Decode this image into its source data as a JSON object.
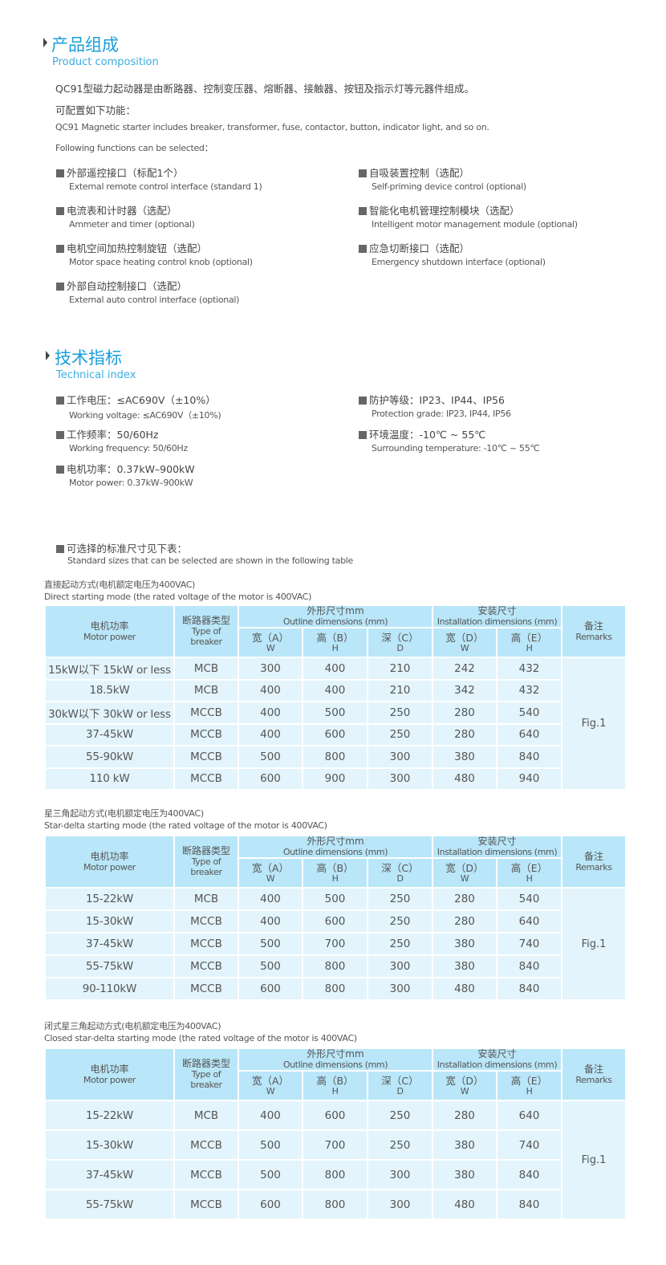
{
  "composition": {
    "title_zh": "产品组成",
    "title_en": "Product composition",
    "intro_zh": "QC91型磁力起动器是由断路器、控制变压器、熔断器、接触器、按钮及指示灯等元器件组成。",
    "config_zh": "可配置如下功能：",
    "intro_en": "QC91 Magnetic starter includes breaker, transformer, fuse, contactor, button, indicator light, and so on.",
    "config_en": "Following functions can be selected：",
    "left_items": [
      {
        "zh": "外部遥控接口（标配1个）",
        "en": "External remote control interface (standard 1)"
      },
      {
        "zh": "电流表和计时器（选配）",
        "en": "Ammeter and timer (optional)"
      },
      {
        "zh": "电机空间加热控制旋钮（选配）",
        "en": "Motor space heating control knob (optional)"
      },
      {
        "zh": "外部自动控制接口（选配）",
        "en": "External auto control interface (optional)"
      }
    ],
    "right_items": [
      {
        "zh": "自吸装置控制（选配）",
        "en": "Self-priming device control (optional)"
      },
      {
        "zh": "智能化电机管理控制模块（选配）",
        "en": "Intelligent motor management module (optional)"
      },
      {
        "zh": "应急切断接口（选配）",
        "en": "Emergency shutdown interface (optional)"
      }
    ]
  },
  "technical": {
    "title_zh": "技术指标",
    "title_en": "Technical index",
    "left_items": [
      {
        "zh": "工作电压：≤AC690V（±10%）",
        "en": "Working voltage: ≤AC690V（±10%)"
      },
      {
        "zh": "工作频率：50/60Hz",
        "en": "Working frequency: 50/60Hz"
      },
      {
        "zh": "电机功率：0.37kW–900kW",
        "en": "Motor power: 0.37kW–900kW"
      }
    ],
    "right_items": [
      {
        "zh": "防护等级：IP23、IP44、IP56",
        "en": "Protection grade: IP23, IP44, IP56"
      },
      {
        "zh": "环境温度：-10℃ ~ 55℃",
        "en": "Surrounding temperature: -10℃ ~ 55℃"
      }
    ],
    "sizes_zh": "可选择的标准尺寸见下表：",
    "sizes_en": "Standard sizes that can be selected are shown in the following table"
  },
  "table_header": {
    "motor_zh": "电机功率",
    "motor_en": "Motor power",
    "breaker_zh": "断路器类型",
    "breaker_en": "Type of breaker",
    "outline_zh": "外形尺寸mm",
    "outline_en": "Outline dimensions (mm)",
    "install_zh": "安装尺寸",
    "install_en": "Installation dimensions (mm)",
    "remarks_zh": "备注",
    "remarks_en": "Remarks",
    "sub": [
      {
        "zh": "宽（A）",
        "en": "W"
      },
      {
        "zh": "高（B）",
        "en": "H"
      },
      {
        "zh": "深（C）",
        "en": "D"
      },
      {
        "zh": "宽（D）",
        "en": "W"
      },
      {
        "zh": "高（E）",
        "en": "H"
      }
    ]
  },
  "tables": [
    {
      "caption_zh": "直接起动方式(电机额定电压为400VAC)",
      "caption_en": "Direct starting mode (the rated voltage of the motor is 400VAC)",
      "remark": "Fig.1",
      "rows": [
        [
          "15kW以下 15kW or less",
          "MCB",
          "300",
          "400",
          "210",
          "242",
          "432"
        ],
        [
          "18.5kW",
          "MCB",
          "400",
          "400",
          "210",
          "342",
          "432"
        ],
        [
          "30kW以下 30kW or less",
          "MCCB",
          "400",
          "500",
          "250",
          "280",
          "540"
        ],
        [
          "37-45kW",
          "MCCB",
          "400",
          "600",
          "250",
          "280",
          "640"
        ],
        [
          "55-90kW",
          "MCCB",
          "500",
          "800",
          "300",
          "380",
          "840"
        ],
        [
          "110 kW",
          "MCCB",
          "600",
          "900",
          "300",
          "480",
          "940"
        ]
      ]
    },
    {
      "caption_zh": "星三角起动方式(电机额定电压为400VAC)",
      "caption_en": "Star-delta starting mode (the rated voltage of the motor is 400VAC)",
      "remark": "Fig.1",
      "rows": [
        [
          "15-22kW",
          "MCB",
          "400",
          "500",
          "250",
          "280",
          "540"
        ],
        [
          "15-30kW",
          "MCCB",
          "400",
          "600",
          "250",
          "280",
          "640"
        ],
        [
          "37-45kW",
          "MCCB",
          "500",
          "700",
          "250",
          "380",
          "740"
        ],
        [
          "55-75kW",
          "MCCB",
          "500",
          "800",
          "300",
          "380",
          "840"
        ],
        [
          "90-110kW",
          "MCCB",
          "600",
          "800",
          "300",
          "480",
          "840"
        ]
      ]
    },
    {
      "caption_zh": "闭式星三角起动方式(电机额定电压为400VAC)",
      "caption_en": "Closed star-delta starting mode (the rated voltage of the motor is 400VAC)",
      "remark": "Fig.1",
      "rows": [
        [
          "15-22kW",
          "MCB",
          "400",
          "600",
          "250",
          "280",
          "640"
        ],
        [
          "15-30kW",
          "MCCB",
          "500",
          "700",
          "250",
          "380",
          "740"
        ],
        [
          "37-45kW",
          "MCCB",
          "500",
          "800",
          "300",
          "380",
          "840"
        ],
        [
          "55-75kW",
          "MCCB",
          "600",
          "800",
          "300",
          "480",
          "840"
        ]
      ]
    }
  ],
  "colors": {
    "title": "#1a9fd9",
    "table_header": "#b9e6f8",
    "table_body": "#e3f4fc"
  }
}
